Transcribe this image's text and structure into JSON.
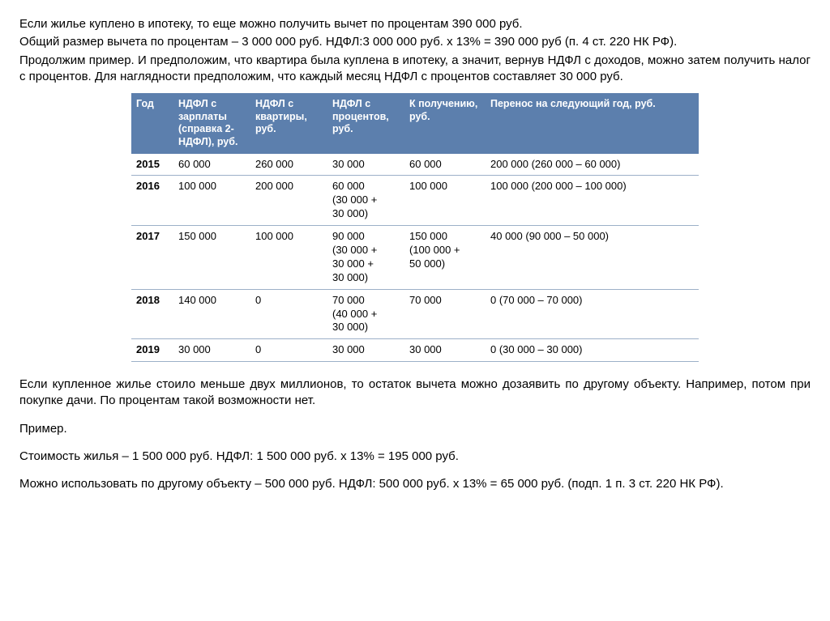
{
  "paragraphs_top": [
    "Если жилье куплено в ипотеку, то еще можно получить вычет по процентам 390 000 руб.",
    "Общий размер вычета по процентам – 3 000 000 руб. НДФЛ:3 000 000 руб. х 13% = 390 000 руб (п. 4 ст. 220 НК РФ).",
    "Продолжим пример. И предположим, что квартира была куплена в ипотеку, а значит, вернув НДФЛ с доходов, можно затем получить налог с процентов. Для наглядности предположим, что каждый месяц НДФЛ с процентов составляет 30 000 руб."
  ],
  "table": {
    "headers": [
      "Год",
      "НДФЛ с зарплаты (справка 2-НДФЛ), руб.",
      "НДФЛ с квартиры, руб.",
      "НДФЛ с процентов, руб.",
      "К получению, руб.",
      "Перенос на следующий год, руб."
    ],
    "rows": [
      {
        "year": "2015",
        "a": "60 000",
        "b": "260 000",
        "c": "30 000",
        "d": "60 000",
        "e": "200 000 (260 000 – 60 000)"
      },
      {
        "year": "2016",
        "a": "100 000",
        "b": "200 000",
        "c": "60 000\n(30 000 +\n30 000)",
        "d": "100 000",
        "e": "100 000 (200 000 – 100 000)"
      },
      {
        "year": "2017",
        "a": "150 000",
        "b": "100 000",
        "c": "90 000\n(30 000 +\n30 000 +\n30 000)",
        "d": "150 000\n(100 000 +\n50 000)",
        "e": "40 000 (90 000 – 50 000)"
      },
      {
        "year": "2018",
        "a": "140 000",
        "b": "0",
        "c": "70 000\n(40 000 +\n30 000)",
        "d": "70 000",
        "e": "0 (70 000 – 70 000)"
      },
      {
        "year": "2019",
        "a": "30 000",
        "b": "0",
        "c": "30 000",
        "d": "30 000",
        "e": "0 (30 000 – 30 000)"
      }
    ],
    "header_bg": "#5c7fad",
    "header_fg": "#ffffff",
    "border_color": "#9cb0c8",
    "font_size_body": 13,
    "font_size_header": 12.5
  },
  "paragraphs_bottom": [
    "Если купленное жилье стоило меньше двух миллионов, то остаток вычета можно дозаявить по другому объекту. Например, потом при покупке дачи. По процентам такой возможности нет.",
    "Пример.",
    "Стоимость жилья – 1 500 000 руб. НДФЛ: 1 500 000 руб. х 13% = 195 000 руб.",
    "Можно использовать по другому объекту – 500 000 руб. НДФЛ: 500 000 руб. х 13% = 65 000 руб. (подп. 1 п. 3 ст. 220 НК РФ)."
  ]
}
